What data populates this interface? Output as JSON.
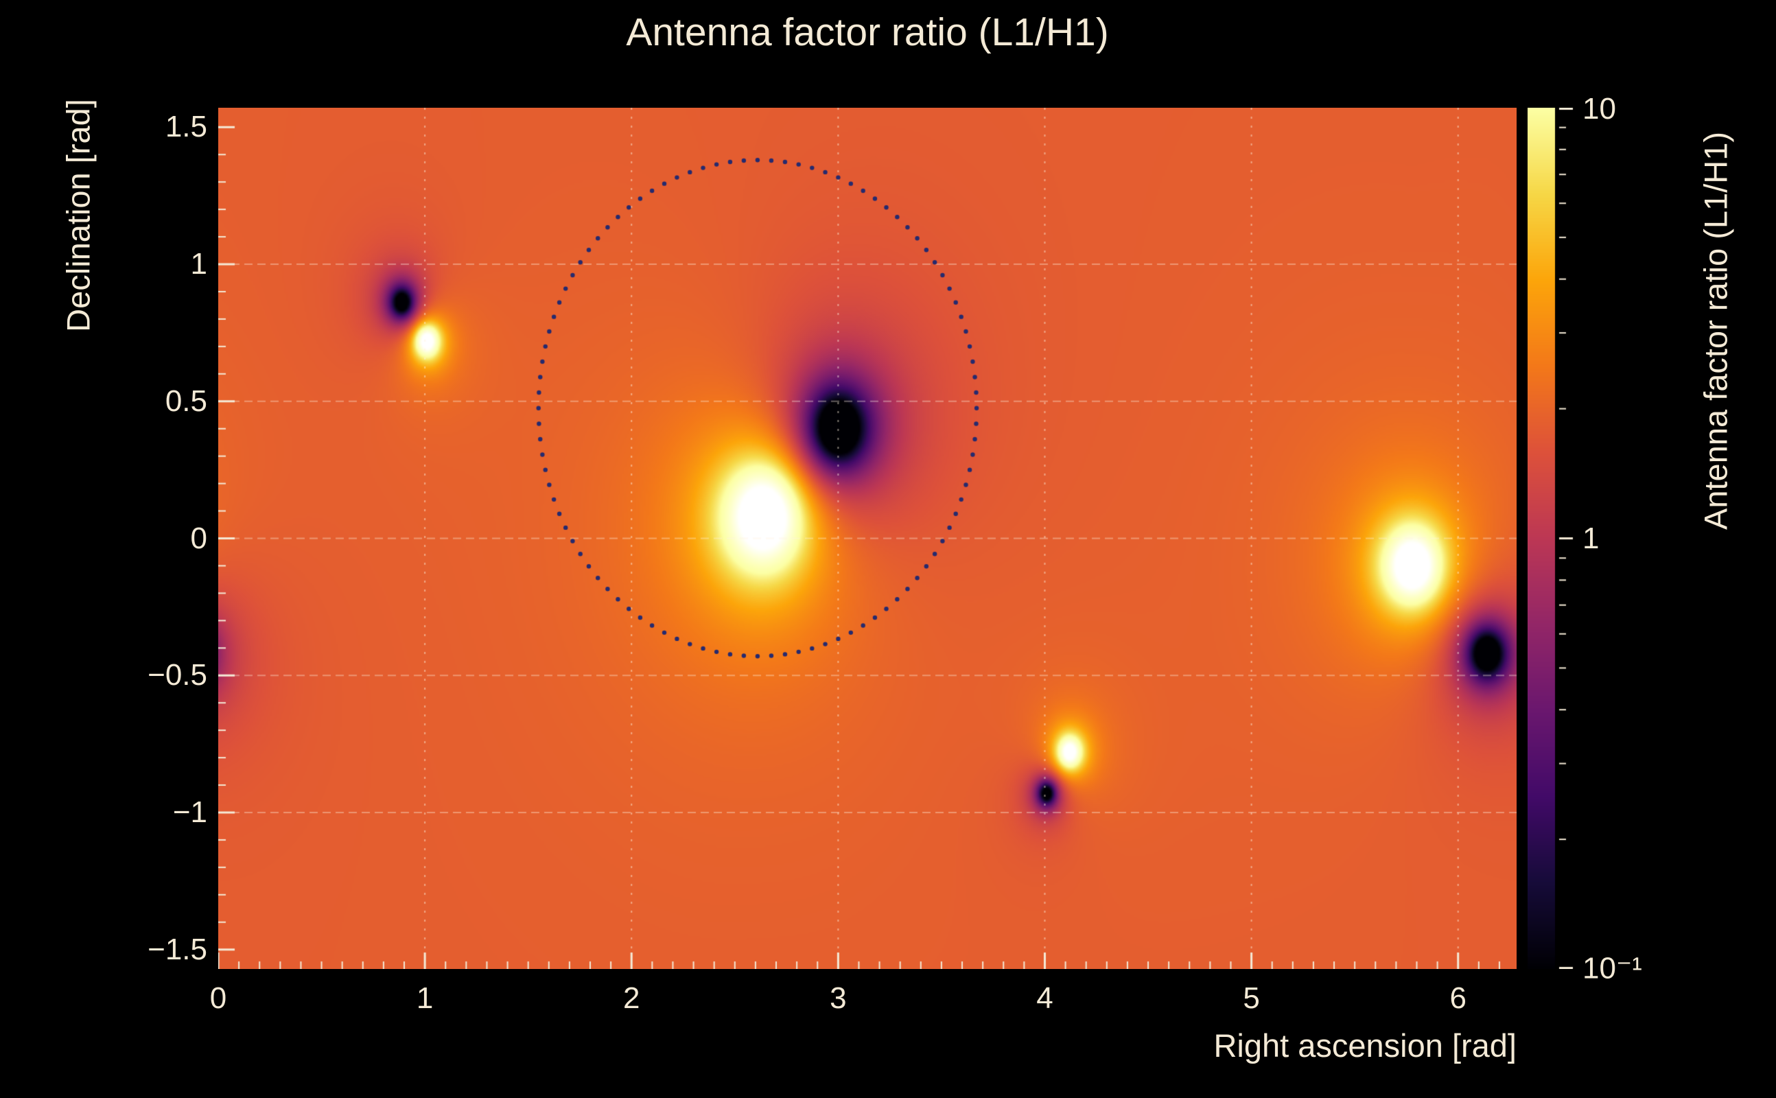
{
  "figure": {
    "background_color": "#000000",
    "text_color": "#f4ead6"
  },
  "chart_data": {
    "type": "heatmap",
    "title": "Antenna factor ratio (L1/H1)",
    "xlabel": "Right ascension [rad]",
    "ylabel": "Declination [rad]",
    "x_range": [
      0,
      6.2832
    ],
    "y_range": [
      -1.5708,
      1.5708
    ],
    "x_ticks": [
      {
        "v": 0,
        "label": "0"
      },
      {
        "v": 1,
        "label": "1"
      },
      {
        "v": 2,
        "label": "2"
      },
      {
        "v": 3,
        "label": "3"
      },
      {
        "v": 4,
        "label": "4"
      },
      {
        "v": 5,
        "label": "5"
      },
      {
        "v": 6,
        "label": "6"
      }
    ],
    "y_ticks": [
      {
        "v": 1.5,
        "label": "1.5"
      },
      {
        "v": 1,
        "label": "1"
      },
      {
        "v": 0.5,
        "label": "0.5"
      },
      {
        "v": 0,
        "label": "0"
      },
      {
        "v": -0.5,
        "label": "−0.5"
      },
      {
        "v": -1,
        "label": "−1"
      },
      {
        "v": -1.5,
        "label": "−1.5"
      }
    ],
    "minor_tick_step": 0.1,
    "grid": true,
    "palette": "inferno",
    "colorbar": {
      "label": "Antenna factor ratio (L1/H1)",
      "scale": "log",
      "range": [
        0.1,
        10
      ],
      "ticks": [
        {
          "v": 10,
          "label": "10"
        },
        {
          "v": 1,
          "label": "1"
        },
        {
          "v": 0.1,
          "label": "10⁻¹"
        }
      ]
    },
    "background_log10": 0.26,
    "features": [
      {
        "kind": "dark",
        "x": 0.89,
        "y": 0.86,
        "amp_log10": -1.8,
        "sigma": 0.06
      },
      {
        "kind": "bright",
        "x": 1.01,
        "y": 0.72,
        "amp_log10": 1.8,
        "sigma": 0.055
      },
      {
        "kind": "bright",
        "x": 2.64,
        "y": 0.08,
        "amp_log10": 2.1,
        "sigma": 0.17
      },
      {
        "kind": "dark",
        "x": 3.0,
        "y": 0.4,
        "amp_log10": -2.2,
        "sigma": 0.14
      },
      {
        "kind": "bright",
        "x": 4.12,
        "y": -0.78,
        "amp_log10": 1.7,
        "sigma": 0.055
      },
      {
        "kind": "dark",
        "x": 4.01,
        "y": -0.93,
        "amp_log10": -1.7,
        "sigma": 0.045
      },
      {
        "kind": "bright",
        "x": 5.78,
        "y": -0.1,
        "amp_log10": 2.0,
        "sigma": 0.12
      },
      {
        "kind": "dark",
        "x": 6.14,
        "y": -0.42,
        "amp_log10": -2.0,
        "sigma": 0.09
      }
    ],
    "contour_ring": {
      "cx": 2.61,
      "cy": 0.475,
      "rx": 1.06,
      "ry": 0.905,
      "style": "dotted",
      "color": "#262a6e",
      "n_dots": 100
    }
  }
}
